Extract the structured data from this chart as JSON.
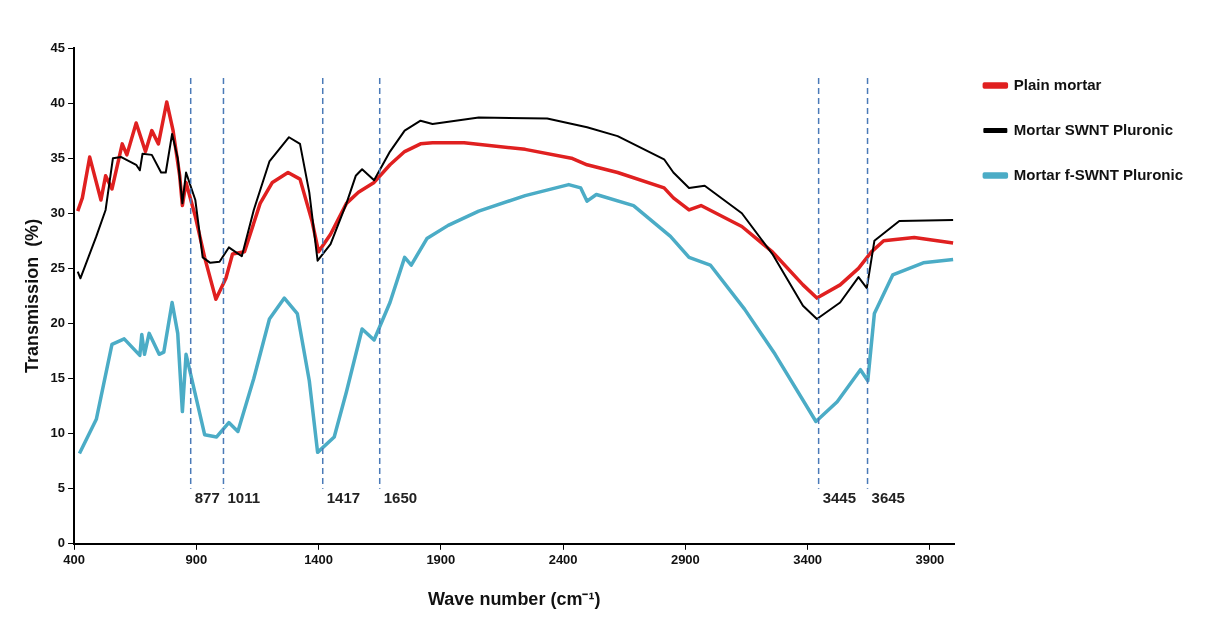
{
  "chart_data": {
    "type": "line",
    "xlabel": "Wave number (cm⁻¹)",
    "ylabel": "Transmission  (%)",
    "xlim": [
      400,
      4000
    ],
    "xticks": [
      400,
      900,
      1400,
      1900,
      2400,
      2900,
      3400,
      3900
    ],
    "ylim": [
      0,
      45
    ],
    "yticks": [
      0,
      5,
      10,
      15,
      20,
      25,
      30,
      35,
      40,
      45
    ],
    "grid": false,
    "legend": "right",
    "marker": "none",
    "line_style": "solid",
    "series": [
      {
        "name": "Plain mortar",
        "color": "#e02020",
        "x": [
          415,
          434,
          464,
          510,
          529,
          555,
          597,
          616,
          654,
          692,
          718,
          745,
          779,
          805,
          832,
          843,
          858,
          896,
          934,
          980,
          1021,
          1048,
          1097,
          1161,
          1211,
          1275,
          1324,
          1373,
          1400,
          1449,
          1514,
          1563,
          1627,
          1692,
          1752,
          1817,
          1866,
          1995,
          2245,
          2434,
          2498,
          2623,
          2813,
          2851,
          2915,
          2964,
          3131,
          3256,
          3381,
          3438,
          3533,
          3608,
          3661,
          3711,
          3836,
          3995
        ],
        "values": [
          30.2,
          31.4,
          35.1,
          31.2,
          33.4,
          32.2,
          36.3,
          35.3,
          38.2,
          35.6,
          37.5,
          36.3,
          40.1,
          37.5,
          33.4,
          30.7,
          32.8,
          29.7,
          26,
          22.2,
          24.1,
          26.3,
          26.5,
          30.9,
          32.8,
          33.7,
          33.1,
          29.3,
          26.5,
          28.1,
          30.9,
          31.9,
          32.8,
          34.4,
          35.6,
          36.3,
          36.4,
          36.4,
          35.8,
          35,
          34.4,
          33.7,
          32.3,
          31.4,
          30.3,
          30.7,
          28.8,
          26.5,
          23.5,
          22.3,
          23.5,
          25,
          26.5,
          27.5,
          27.8,
          27.3
        ]
      },
      {
        "name": "Mortar SWNT Pluronic",
        "color": "#000000",
        "x": [
          415,
          426,
          491,
          529,
          559,
          593,
          654,
          669,
          680,
          718,
          756,
          775,
          801,
          824,
          843,
          858,
          896,
          926,
          957,
          995,
          1033,
          1086,
          1135,
          1199,
          1279,
          1324,
          1362,
          1396,
          1449,
          1514,
          1552,
          1578,
          1627,
          1692,
          1752,
          1817,
          1866,
          2055,
          2335,
          2498,
          2623,
          2813,
          2851,
          2915,
          2979,
          3131,
          3256,
          3381,
          3438,
          3533,
          3608,
          3642,
          3673,
          3775,
          3995
        ],
        "values": [
          24.7,
          24.1,
          27.9,
          30.3,
          35,
          35.1,
          34.4,
          33.9,
          35.4,
          35.3,
          33.7,
          33.7,
          37.2,
          35,
          30.9,
          33.7,
          31.2,
          26,
          25.5,
          25.6,
          26.9,
          26.1,
          30.3,
          34.7,
          36.9,
          36.3,
          31.9,
          25.7,
          27.2,
          30.9,
          33.4,
          34,
          33,
          35.6,
          37.5,
          38.4,
          38.1,
          38.7,
          38.6,
          37.8,
          37,
          34.9,
          33.7,
          32.3,
          32.5,
          30,
          26.3,
          21.6,
          20.4,
          21.9,
          24.2,
          23.2,
          27.5,
          29.3,
          29.4
        ]
      },
      {
        "name": "Mortar f-SWNT Pluronic",
        "color": "#4bacc6",
        "x": [
          422,
          491,
          555,
          605,
          669,
          677,
          688,
          707,
          748,
          767,
          801,
          824,
          843,
          858,
          934,
          983,
          1033,
          1070,
          1135,
          1199,
          1260,
          1313,
          1362,
          1396,
          1464,
          1514,
          1578,
          1627,
          1692,
          1752,
          1779,
          1843,
          1930,
          2055,
          2245,
          2423,
          2472,
          2498,
          2536,
          2688,
          2839,
          2915,
          3002,
          3142,
          3267,
          3434,
          3521,
          3616,
          3646,
          3673,
          3748,
          3873,
          3995
        ],
        "values": [
          8.2,
          11.3,
          18.1,
          18.6,
          17.1,
          19,
          17.2,
          19.1,
          17.2,
          17.4,
          21.9,
          19.1,
          12,
          17.2,
          9.9,
          9.7,
          11,
          10.2,
          15,
          20.4,
          22.3,
          20.9,
          14.8,
          8.3,
          9.7,
          13.8,
          19.5,
          18.5,
          21.9,
          26,
          25.3,
          27.7,
          28.9,
          30.2,
          31.6,
          32.6,
          32.3,
          31.1,
          31.7,
          30.7,
          27.9,
          26,
          25.3,
          21.3,
          17.2,
          11.1,
          12.9,
          15.8,
          14.8,
          20.9,
          24.4,
          25.5,
          25.8
        ]
      }
    ],
    "ref_lines": [
      {
        "axis": "x",
        "value": 877,
        "label": "877",
        "color": "#4a7ab8",
        "line_style": "dashed"
      },
      {
        "axis": "x",
        "value": 1011,
        "label": "1011",
        "color": "#4a7ab8",
        "line_style": "dashed"
      },
      {
        "axis": "x",
        "value": 1417,
        "label": "1417",
        "color": "#4a7ab8",
        "line_style": "dashed"
      },
      {
        "axis": "x",
        "value": 1650,
        "label": "1650",
        "color": "#4a7ab8",
        "line_style": "dashed"
      },
      {
        "axis": "x",
        "value": 3445,
        "label": "3445",
        "color": "#4a7ab8",
        "line_style": "dashed"
      },
      {
        "axis": "x",
        "value": 3645,
        "label": "3645",
        "color": "#4a7ab8",
        "line_style": "dashed"
      }
    ]
  }
}
